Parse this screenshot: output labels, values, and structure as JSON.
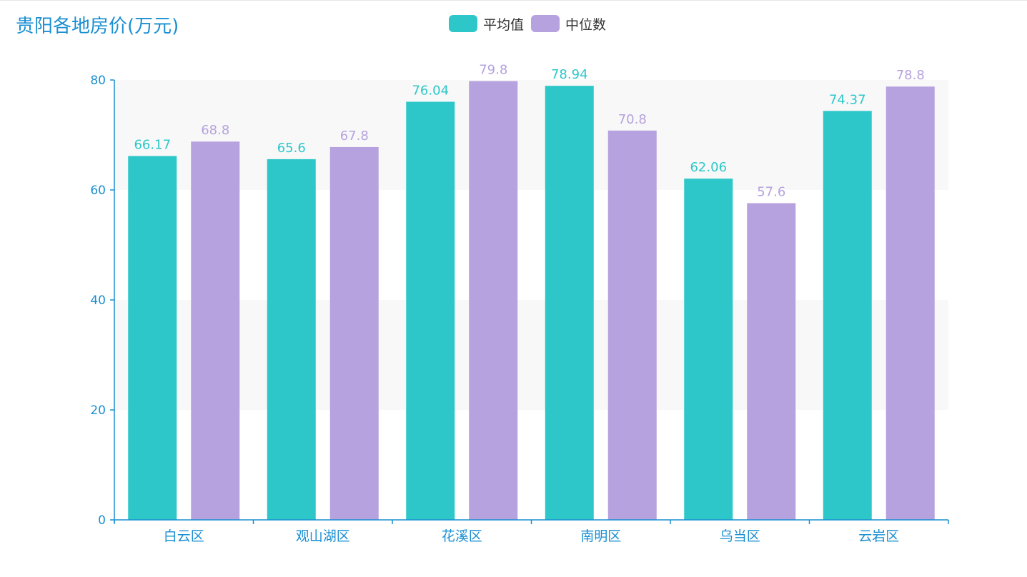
{
  "chart_data": {
    "type": "bar",
    "title": "贵阳各地房价(万元)",
    "categories": [
      "白云区",
      "观山湖区",
      "花溪区",
      "南明区",
      "乌当区",
      "云岩区"
    ],
    "series": [
      {
        "name": "平均值",
        "values": [
          66.17,
          65.6,
          76.04,
          78.94,
          62.06,
          74.37
        ],
        "color": "#2ec7c9"
      },
      {
        "name": "中位数",
        "values": [
          68.8,
          67.8,
          79.8,
          70.8,
          57.6,
          78.8
        ],
        "color": "#b6a2de"
      }
    ],
    "ylim": [
      0,
      80
    ],
    "yticks": [
      0,
      20,
      40,
      60,
      80
    ],
    "xlabel": "",
    "ylabel": "",
    "legend_position": "top-center",
    "grid": "alternating-bands"
  },
  "colors": {
    "title": "#1a8fd1",
    "axis": "#1a8fd1",
    "band": "#f8f8f8"
  }
}
